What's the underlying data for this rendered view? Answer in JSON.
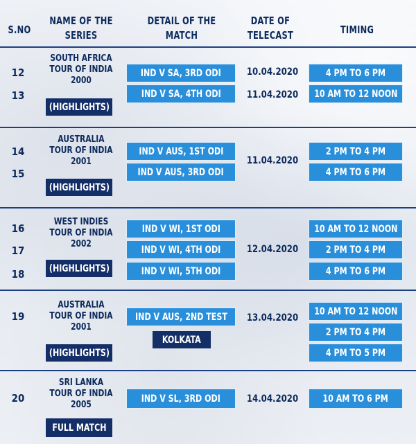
{
  "header": {
    "sno": "S.NO",
    "series": "NAME OF THE SERIES",
    "detail": "DETAIL OF THE MATCH",
    "date": "DATE OF TELECAST",
    "timing": "TIMING"
  },
  "rows": {
    "g1": {
      "series": [
        "SOUTH AFRICA",
        "TOUR OF INDIA",
        "2000"
      ],
      "badge": "(HIGHLIGHTS)",
      "sno": [
        "12",
        "13"
      ],
      "matches": [
        "IND V SA, 3RD ODI",
        "IND V SA, 4TH ODI"
      ],
      "dates": [
        "10.04.2020",
        "11.04.2020"
      ],
      "timings": [
        "4 PM TO 6 PM",
        "10 AM TO 12 NOON"
      ]
    },
    "g2": {
      "series": [
        "AUSTRALIA",
        "TOUR OF INDIA",
        "2001"
      ],
      "badge": "(HIGHLIGHTS)",
      "sno": [
        "14",
        "15"
      ],
      "matches": [
        "IND V AUS, 1ST ODI",
        "IND V AUS, 3RD ODI"
      ],
      "dates": [
        "11.04.2020"
      ],
      "timings": [
        "2 PM TO 4 PM",
        "4 PM TO 6 PM"
      ]
    },
    "g3": {
      "series": [
        "WEST INDIES",
        "TOUR OF INDIA",
        "2002"
      ],
      "badge": "(HIGHLIGHTS)",
      "sno": [
        "16",
        "17",
        "18"
      ],
      "matches": [
        "IND V WI, 1ST ODI",
        "IND V WI, 4TH ODI",
        "IND V WI, 5TH ODI"
      ],
      "dates": [
        "12.04.2020"
      ],
      "timings": [
        "10 AM TO 12 NOON",
        "2 PM TO 4 PM",
        "4 PM TO 6 PM"
      ]
    },
    "g4": {
      "series": [
        "AUSTRALIA",
        "TOUR OF INDIA",
        "2001"
      ],
      "badge": "(HIGHLIGHTS)",
      "sno": [
        "19"
      ],
      "matches": [
        "IND V AUS, 2ND TEST"
      ],
      "venue": "KOLKATA",
      "dates": [
        "13.04.2020"
      ],
      "timings": [
        "10 AM TO 12 NOON",
        "2 PM TO 4 PM",
        "4 PM TO 5 PM"
      ]
    },
    "g5": {
      "series": [
        "SRI LANKA",
        "TOUR OF INDIA",
        "2005"
      ],
      "badge": "FULL MATCH",
      "sno": [
        "20"
      ],
      "matches": [
        "IND V SL, 3RD ODI"
      ],
      "dates": [
        "14.04.2020"
      ],
      "timings": [
        "10 AM TO 6 PM"
      ]
    }
  },
  "colors": {
    "navy": "#142e68",
    "blue": "#2a8fdb",
    "text": "#0d2a5c",
    "rule": "#1c3f82"
  }
}
